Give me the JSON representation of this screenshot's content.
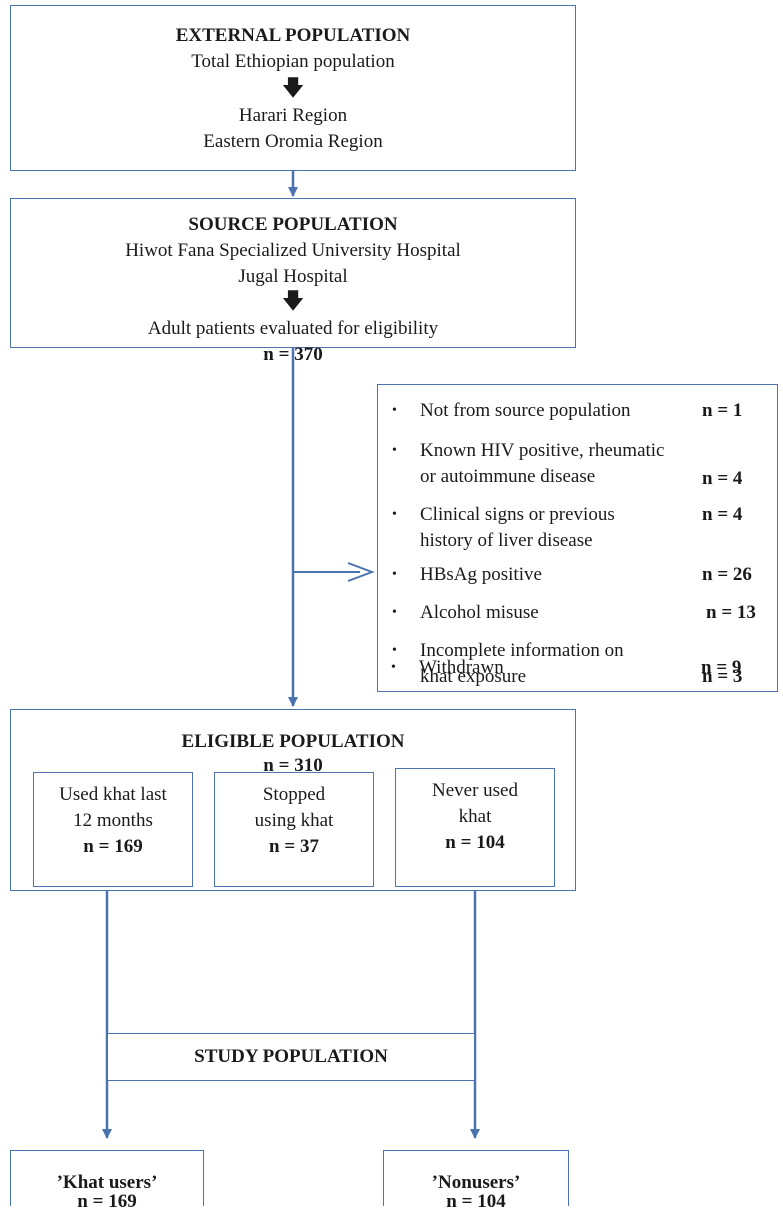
{
  "external": {
    "title": "EXTERNAL POPULATION",
    "line1": "Total Ethiopian population",
    "line2": "Harari Region",
    "line3": "Eastern Oromia Region"
  },
  "source": {
    "title": "SOURCE POPULATION",
    "line1": "Hiwot Fana Specialized University Hospital",
    "line2": "Jugal Hospital",
    "line3": "Adult patients evaluated for eligibility",
    "n": "n = 370"
  },
  "exclusions": [
    {
      "text": [
        "Not from source population"
      ],
      "n": "n = 1"
    },
    {
      "text": [
        "Known HIV positive, rheumatic",
        "or autoimmune disease"
      ],
      "n": "n = 4"
    },
    {
      "text": [
        "Clinical signs or previous",
        "history of liver disease"
      ],
      "n": "n = 4"
    },
    {
      "text": [
        "HBsAg positive"
      ],
      "n": "n = 26"
    },
    {
      "text": [
        "Alcohol misuse"
      ],
      "n": "n = 13"
    },
    {
      "text": [
        "Incomplete information on",
        "khat exposure"
      ],
      "n": "n = 3"
    },
    {
      "text": [
        "Withdrawn"
      ],
      "n": "n = 9"
    }
  ],
  "eligible": {
    "title": "ELIGIBLE POPULATION",
    "n": "n = 310",
    "groups": [
      {
        "line1": "Used khat last",
        "line2": "12 months",
        "n": "n = 169"
      },
      {
        "line1": "Stopped",
        "line2": "using khat",
        "n": "n = 37"
      },
      {
        "line1": "Never used",
        "line2": "khat",
        "n": "n = 104"
      }
    ]
  },
  "study": {
    "label": "STUDY POPULATION"
  },
  "final": [
    {
      "label": "’Khat users’",
      "n": "n = 169"
    },
    {
      "label": "’Nonusers’",
      "n": "n = 104"
    }
  ],
  "colors": {
    "border": "#4a73b0",
    "arrow": "#4a73b0",
    "text": "#1a1a1a"
  }
}
